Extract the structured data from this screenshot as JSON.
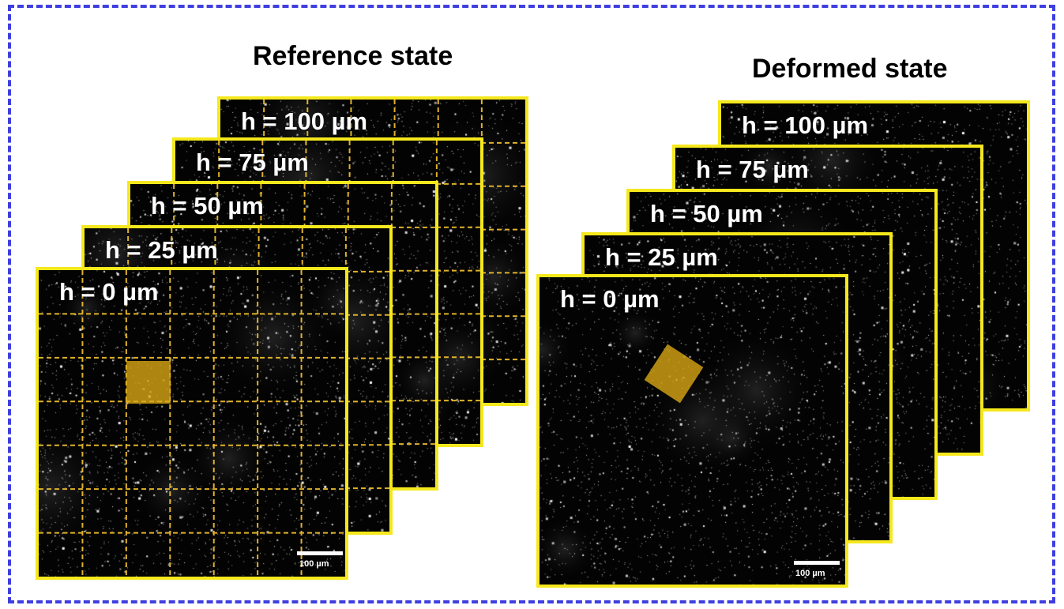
{
  "reference": {
    "title": "Reference state",
    "slices": [
      {
        "label": "h = 100 µm"
      },
      {
        "label": "h = 75 µm"
      },
      {
        "label": "h = 50 µm"
      },
      {
        "label": "h = 25 µm"
      },
      {
        "label": "h = 0 µm"
      }
    ],
    "scalebar_label": "100 µm"
  },
  "deformed": {
    "title": "Deformed state",
    "slices": [
      {
        "label": "h = 100 µm"
      },
      {
        "label": "h = 75 µm"
      },
      {
        "label": "h = 50 µm"
      },
      {
        "label": "h = 25 µm"
      },
      {
        "label": "h = 0 µm"
      }
    ],
    "scalebar_label": "100 µm"
  },
  "colors": {
    "frame_border": "#3f3fe0",
    "slice_border": "#f5e81c",
    "grid_line": "#e0b22a",
    "roi_fill": "#deaa14",
    "image_background": "#030303"
  },
  "icons": {
    "roi_marker": "highlighted-subregion",
    "scale_bar": "scale-bar"
  }
}
